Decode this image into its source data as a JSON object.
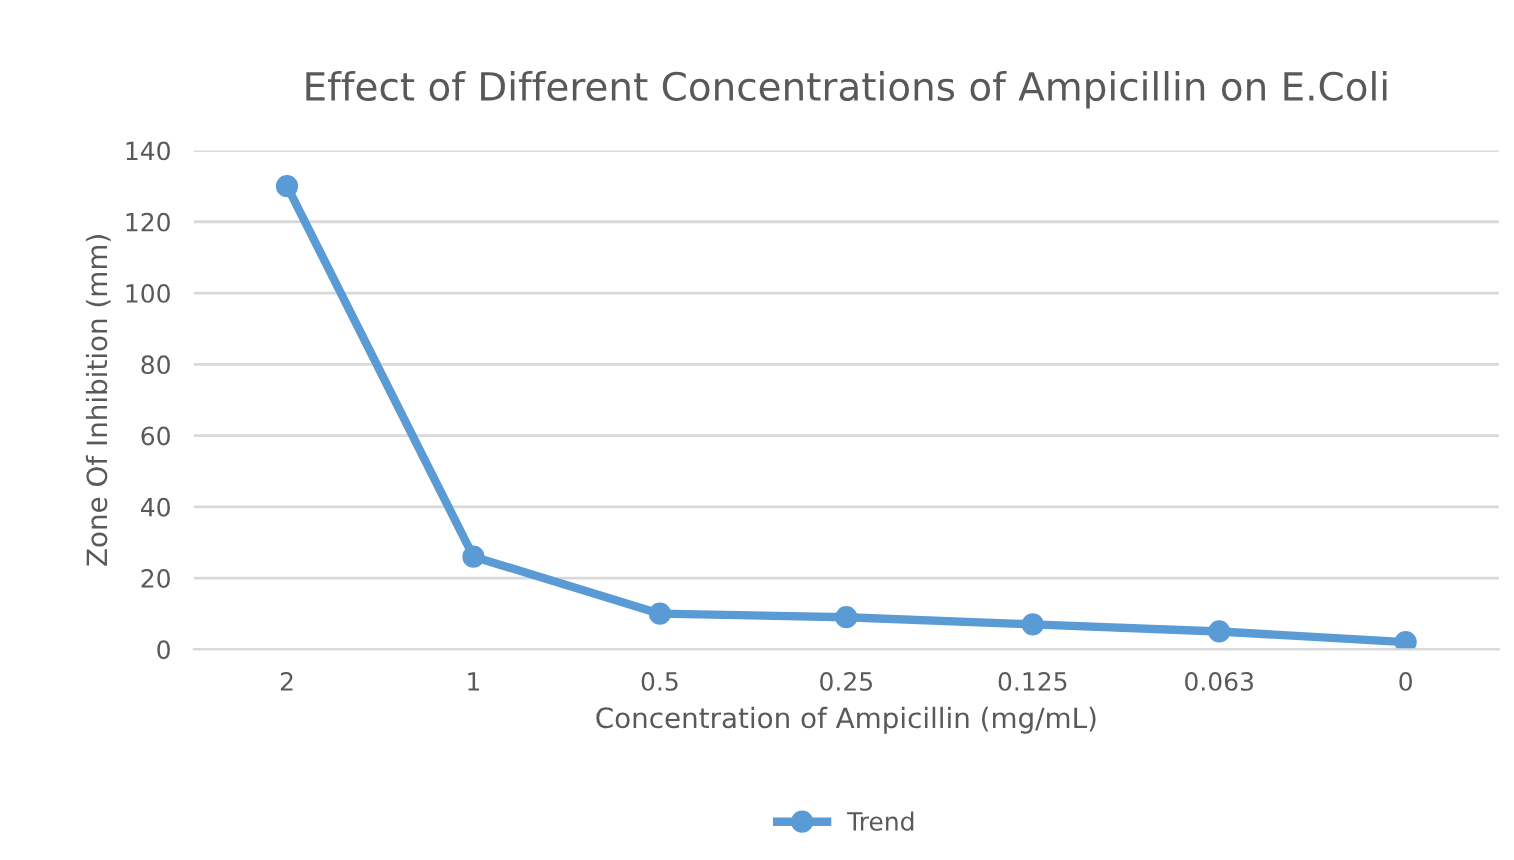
{
  "chart_data": {
    "type": "line",
    "title": "Effect of Different Concentrations of Ampicillin on E.Coli",
    "xlabel": "Concentration of Ampicillin (mg/mL)",
    "ylabel": "Zone Of Inhibition (mm)",
    "categories": [
      "2",
      "1",
      "0.5",
      "0.25",
      "0.125",
      "0.063",
      "0"
    ],
    "series": [
      {
        "name": "Trend",
        "color": "#5b9bd5",
        "values": [
          130,
          26,
          10,
          9,
          7,
          5,
          2
        ]
      }
    ],
    "ylim": [
      0,
      140
    ],
    "yticks": [
      0,
      20,
      40,
      60,
      80,
      100,
      120,
      140
    ],
    "grid": "y",
    "legend": "bottom",
    "marker": "circle",
    "line_style": "solid"
  }
}
